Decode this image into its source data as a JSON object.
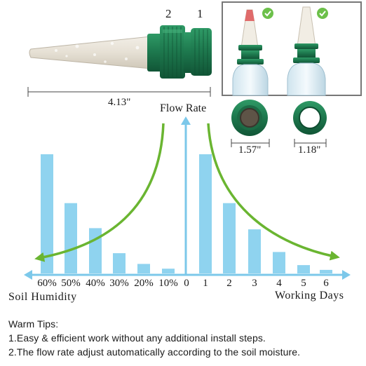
{
  "product_labels": {
    "part_numbers": [
      "2",
      "1"
    ],
    "spike_length": "4.13\"",
    "flow_rate_label": "Flow Rate",
    "outer_diameter": "1.57\"",
    "inner_diameter": "1.18\"",
    "check_icon": "check-circle-icon"
  },
  "colors": {
    "bar": "#8fd3ef",
    "axis": "#7cc8ea",
    "curve": "#6ab531",
    "cap_green": "#1e7a4f",
    "check_green": "#6cc04a"
  },
  "chart_data": {
    "type": "bar",
    "left_panel": {
      "xlabel": "Soil Humidity",
      "categories": [
        "60%",
        "50%",
        "40%",
        "30%",
        "20%",
        "10%"
      ],
      "values": [
        100,
        59,
        38,
        17,
        8,
        4
      ]
    },
    "right_panel": {
      "xlabel": "Working Days",
      "categories": [
        "1",
        "2",
        "3",
        "4",
        "5",
        "6"
      ],
      "values": [
        100,
        59,
        37,
        18,
        7,
        3
      ]
    },
    "origin_label": "0",
    "ylabel": "Flow Rate"
  },
  "tips": {
    "title": "Warm Tips:",
    "lines": [
      "1.Easy & efficient work without any additional install steps.",
      "2.The flow rate adjust automatically according to the soil moisture."
    ]
  }
}
